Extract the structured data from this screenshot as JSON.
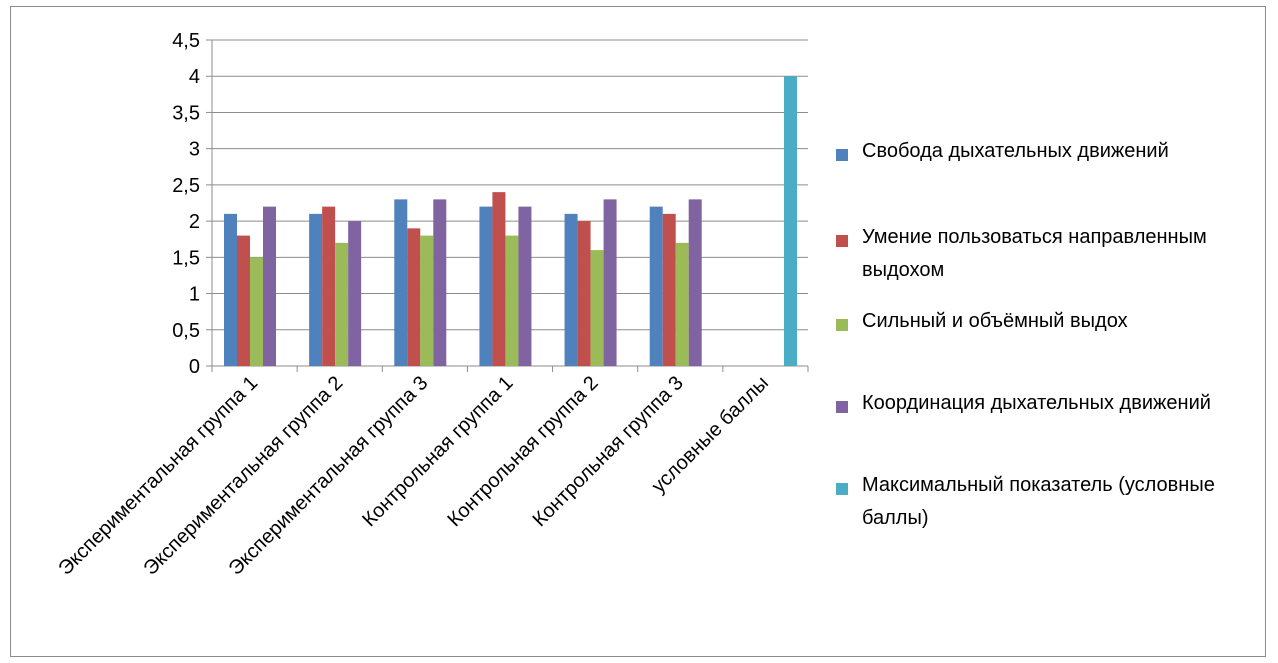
{
  "chart_data": {
    "type": "bar",
    "title": "",
    "xlabel": "",
    "ylabel": "",
    "ylim": [
      0,
      4.5
    ],
    "y_ticks": [
      "0",
      "0,5",
      "1",
      "1,5",
      "2",
      "2,5",
      "3",
      "3,5",
      "4",
      "4,5"
    ],
    "y_tick_values": [
      0,
      0.5,
      1,
      1.5,
      2,
      2.5,
      3,
      3.5,
      4,
      4.5
    ],
    "grid": true,
    "legend_position": "right",
    "categories": [
      "Экспериментальная группа 1",
      "Экспериментальная группа 2",
      "Экспериментальная группа 3",
      "Контрольная группа 1",
      "Контрольная группа 2",
      "Контрольная группа 3",
      "условные баллы"
    ],
    "series": [
      {
        "name": "Свобода дыхательных движений",
        "color": "#4f81bd",
        "values": [
          2.1,
          2.1,
          2.3,
          2.2,
          2.1,
          2.2,
          null
        ]
      },
      {
        "name": "Умение пользоваться направленным выдохом",
        "color": "#c0504d",
        "values": [
          1.8,
          2.2,
          1.9,
          2.4,
          2.0,
          2.1,
          null
        ]
      },
      {
        "name": "Сильный и объёмный выдох",
        "color": "#9bbb59",
        "values": [
          1.5,
          1.7,
          1.8,
          1.8,
          1.6,
          1.7,
          null
        ]
      },
      {
        "name": "Координация дыхательных движений",
        "color": "#8064a2",
        "values": [
          2.2,
          2.0,
          2.3,
          2.2,
          2.3,
          2.3,
          null
        ]
      },
      {
        "name": "Максимальный показатель (условные баллы)",
        "color": "#4bacc6",
        "values": [
          null,
          null,
          null,
          null,
          null,
          null,
          4
        ]
      }
    ]
  }
}
